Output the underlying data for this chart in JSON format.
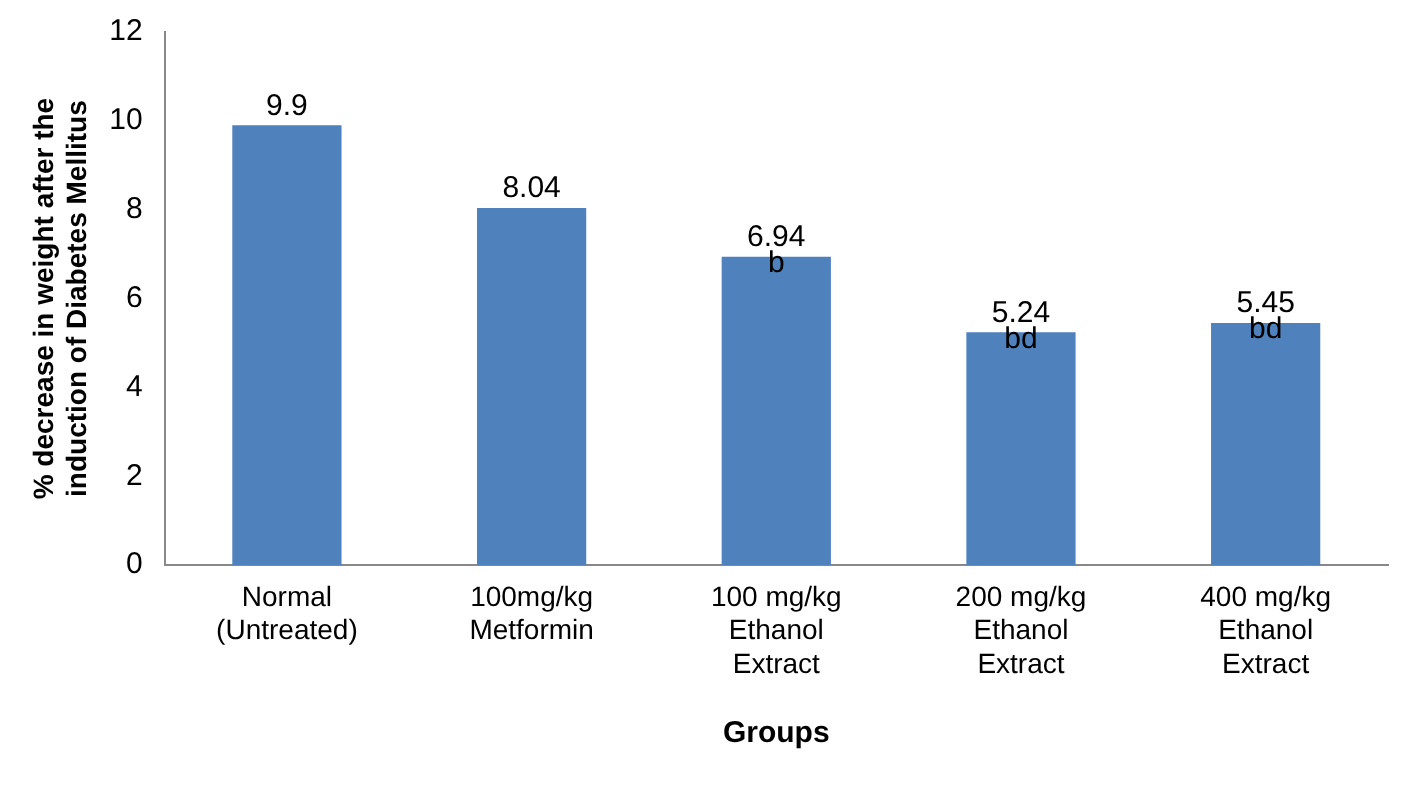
{
  "chart_data": {
    "type": "bar",
    "xlabel": "Groups",
    "ylabel": "% decrease in weight after the\ninduction of Diabetes Mellitus",
    "categories": [
      "Normal\n(Untreated)",
      "100mg/kg\nMetformin",
      "100 mg/kg\nEthanol\nExtract",
      "200 mg/kg\nEthanol\nExtract",
      "400 mg/kg\nEthanol\nExtract"
    ],
    "values": [
      9.9,
      8.04,
      6.94,
      5.24,
      5.45
    ],
    "color": "#4f81bd",
    "ylim": [
      0,
      12
    ],
    "yticks": [
      0,
      2,
      4,
      6,
      8,
      10,
      12
    ],
    "grid": false,
    "legend": false,
    "data_labels": true,
    "annotations": [
      {
        "text": "b",
        "x": "100 mg/kg\nEthanol\nExtract",
        "y": 6.94
      },
      {
        "text": "bd",
        "x": "200 mg/kg\nEthanol\nExtract",
        "y": 5.24
      },
      {
        "text": "bd",
        "x": "400 mg/kg\nEthanol\nExtract",
        "y": 5.45
      }
    ]
  }
}
